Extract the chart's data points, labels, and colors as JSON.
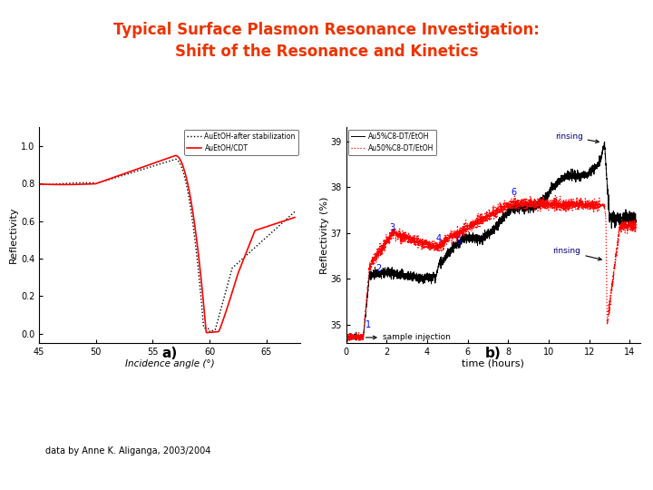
{
  "title_line1": "Typical Surface Plasmon Resonance Investigation:",
  "title_line2": "Shift of the Resonance and Kinetics",
  "title_color": "#ee3300",
  "title_fontsize": 12,
  "background_color": "#ffffff",
  "credit_text": "data by Anne K. Aliganga, 2003/2004",
  "plot_a": {
    "xlabel": "Incidence angle (°)",
    "ylabel": "Reflectivity",
    "xlim": [
      45,
      68
    ],
    "ylim": [
      -0.05,
      1.1
    ],
    "yticks": [
      0.0,
      0.2,
      0.4,
      0.6,
      0.8,
      1.0
    ],
    "xticks": [
      45,
      50,
      55,
      60,
      65
    ],
    "legend1": "AuEtOH-after stabilization",
    "legend2": "AuEtOH/CDT",
    "label_a": "a)"
  },
  "plot_b": {
    "xlabel": "time (hours)",
    "ylabel": "Reflectivity (%)",
    "xlim": [
      0,
      14.5
    ],
    "ylim": [
      34.6,
      39.3
    ],
    "yticks": [
      35,
      36,
      37,
      38,
      39
    ],
    "xticks": [
      0,
      2,
      4,
      6,
      8,
      10,
      12,
      14
    ],
    "legend1": "Au5%C8-DT/EtOH",
    "legend2": "Au50%C8-DT/EtOH",
    "label_b": "b)"
  }
}
